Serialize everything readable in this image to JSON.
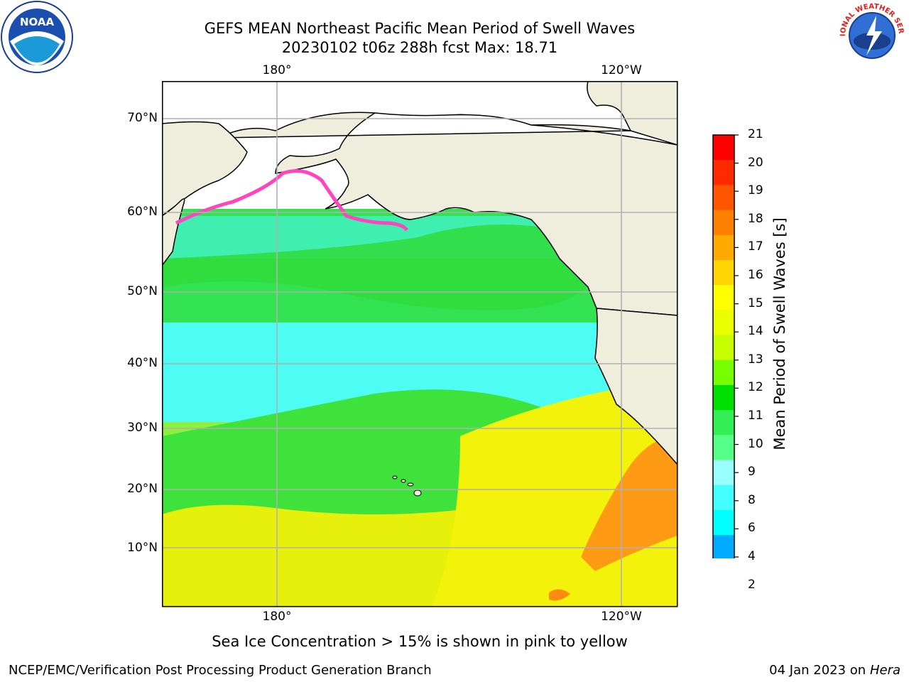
{
  "title_line1": "GEFS MEAN Northeast Pacific Mean Period of Swell Waves",
  "title_line2": "20230102 t06z 288h fcst   Max: 18.71",
  "lon_labels_top": [
    "180°",
    "120°W"
  ],
  "lon_labels_bottom": [
    "180°",
    "120°W"
  ],
  "lat_labels": [
    "70°N",
    "60°N",
    "50°N",
    "40°N",
    "30°N",
    "20°N",
    "10°N"
  ],
  "colorbar": {
    "title": "Mean Period of Swell Waves [s]",
    "ticks": [
      "21",
      "20",
      "19",
      "18",
      "17",
      "16",
      "15",
      "14",
      "13",
      "12",
      "11",
      "10",
      "9",
      "8",
      "6",
      "4",
      "2"
    ],
    "colors_top_to_bottom": [
      "#ff0000",
      "#ff2a00",
      "#ff5500",
      "#ff7f00",
      "#ffaa00",
      "#ffd400",
      "#ffff00",
      "#eaff00",
      "#c8ff00",
      "#77ff00",
      "#00e000",
      "#33ee55",
      "#55ff88",
      "#99ffff",
      "#44ffff",
      "#00ffff",
      "#00aaff",
      "#0055ff"
    ],
    "extend_color": "#0000ff"
  },
  "footnote": "Sea Ice Concentration > 15% is shown in pink to yellow",
  "credit": "NCEP/EMC/Verification Post Processing Product Generation Branch",
  "date_text": "04 Jan 2023 on",
  "machine": "Hera",
  "logos": {
    "noaa": "NOAA",
    "nws": "NATIONAL WEATHER SERVICE"
  }
}
